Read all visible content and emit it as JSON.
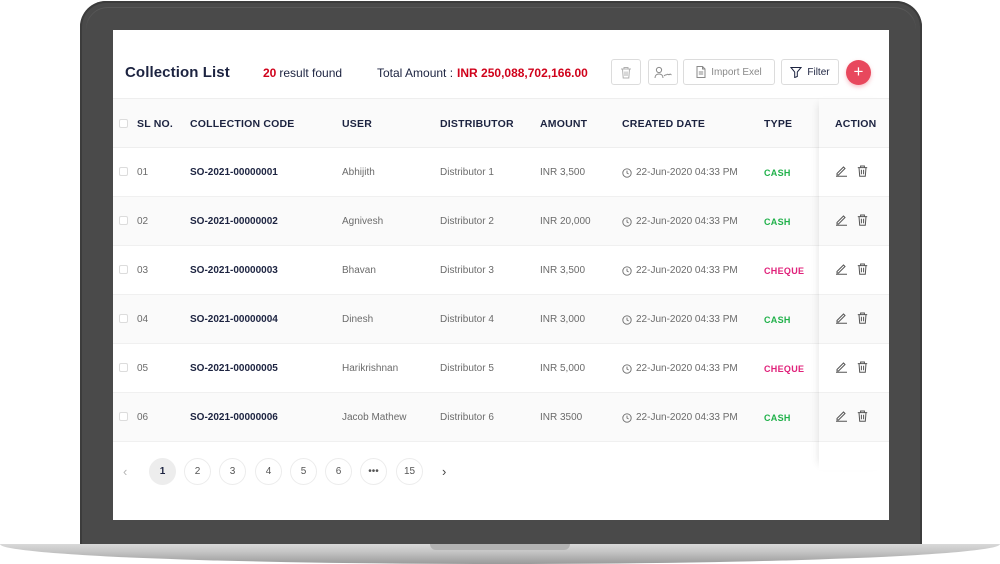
{
  "header": {
    "title": "Collection List",
    "result_count": "20",
    "result_label": "result found",
    "total_label": "Total Amount :",
    "total_value": "INR 250,088,702,166.00",
    "import_label": "Import Exel",
    "filter_label": "Filter",
    "add_label": "+"
  },
  "columns": {
    "sl": "SL NO.",
    "code": "COLLECTION CODE",
    "user": "USER",
    "distributor": "DISTRIBUTOR",
    "amount": "AMOUNT",
    "created": "CREATED DATE",
    "type": "TYPE",
    "action": "ACTION"
  },
  "rows": [
    {
      "sl": "01",
      "code": "SO-2021-00000001",
      "user": "Abhijith",
      "distributor": "Distributor 1",
      "amount": "INR 3,500",
      "date": "22-Jun-2020 04:33 PM",
      "type": "CASH"
    },
    {
      "sl": "02",
      "code": "SO-2021-00000002",
      "user": "Agnivesh",
      "distributor": "Distributor 2",
      "amount": "INR 20,000",
      "date": "22-Jun-2020 04:33 PM",
      "type": "CASH"
    },
    {
      "sl": "03",
      "code": "SO-2021-00000003",
      "user": "Bhavan",
      "distributor": "Distributor 3",
      "amount": "INR 3,500",
      "date": "22-Jun-2020 04:33 PM",
      "type": "CHEQUE"
    },
    {
      "sl": "04",
      "code": "SO-2021-00000004",
      "user": "Dinesh",
      "distributor": "Distributor 4",
      "amount": "INR 3,000",
      "date": "22-Jun-2020 04:33 PM",
      "type": "CASH"
    },
    {
      "sl": "05",
      "code": "SO-2021-00000005",
      "user": "Harikrishnan",
      "distributor": "Distributor 5",
      "amount": "INR 5,000",
      "date": "22-Jun-2020 04:33 PM",
      "type": "CHEQUE"
    },
    {
      "sl": "06",
      "code": "SO-2021-00000006",
      "user": "Jacob Mathew",
      "distributor": "Distributor 6",
      "amount": "INR 3500",
      "date": "22-Jun-2020 04:33 PM",
      "type": "CASH"
    }
  ],
  "pagination": {
    "pages": [
      "1",
      "2",
      "3",
      "4",
      "5",
      "6",
      "•••",
      "15"
    ],
    "active": "1",
    "prev": "‹",
    "next": "›"
  },
  "colors": {
    "accent_red": "#d0021b",
    "add_button": "#e8485d",
    "cash": "#20b14a",
    "cheque": "#e0217a",
    "frame": "#4a4a4a"
  },
  "icons": {
    "delete": "trash-icon",
    "assign": "user-sign-icon",
    "import": "document-icon",
    "filter": "filter-icon",
    "clock": "clock-icon",
    "edit": "pencil-icon"
  }
}
